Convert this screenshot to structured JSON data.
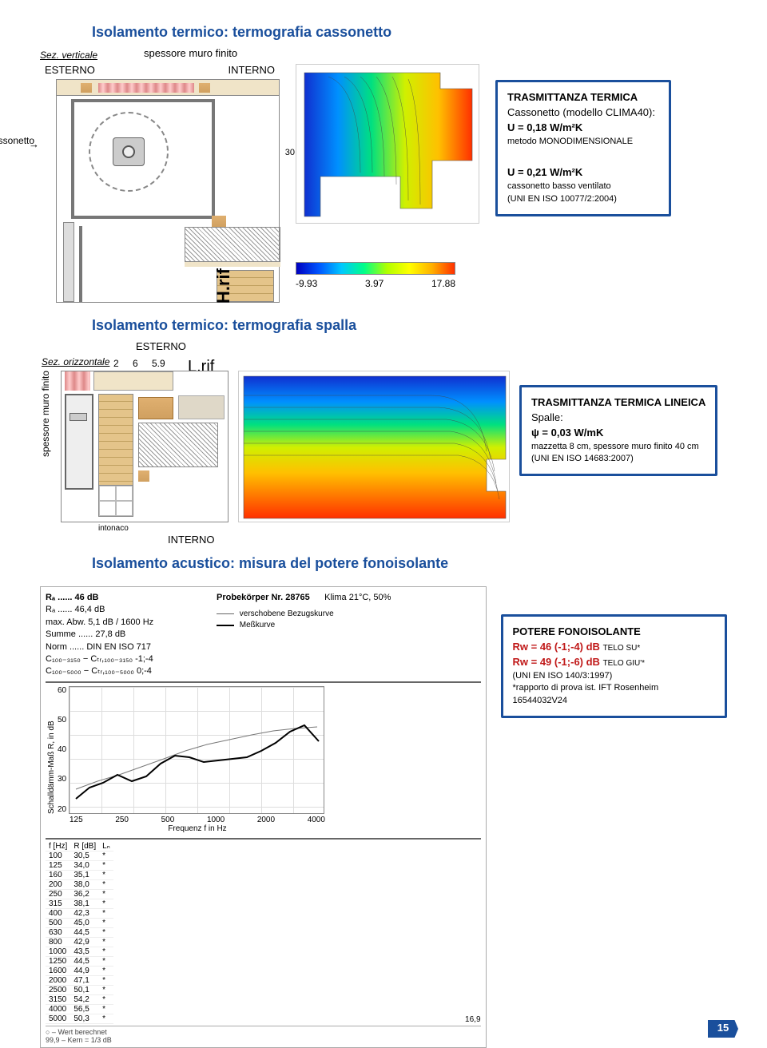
{
  "section1": {
    "title": "Isolamento termico: termografia cassonetto",
    "sez": "Sez. verticale",
    "spessore": "spessore muro finito",
    "esterno": "ESTERNO",
    "interno": "INTERNO",
    "cassonetto": "cassonetto",
    "dim30": "30",
    "hrif": "H.rif",
    "scale": {
      "min": "-9.93",
      "mid": "3.97",
      "max": "17.88"
    },
    "info": {
      "heading": "TRASMITTANZA TERMICA",
      "line1": "Cassonetto (modello CLIMA40):",
      "u1": "U = 0,18 W/m²K",
      "meth": "metodo MONODIMENSIONALE",
      "u2": "U = 0,21 W/m²K",
      "vent": "cassonetto basso ventilato",
      "std": "(UNI EN ISO 10077/2:2004)"
    }
  },
  "section2": {
    "title": "Isolamento termico: termografia spalla",
    "sez": "Sez. orizzontale",
    "esterno": "ESTERNO",
    "lrif": "L.rif",
    "dims": {
      "a": "2",
      "b": "6",
      "c": "5.9"
    },
    "spessore": "spessore muro finito",
    "intonaco": "intonaco",
    "interno": "INTERNO",
    "info": {
      "heading": "TRASMITTANZA TERMICA LINEICA",
      "line1": "Spalle:",
      "psi": "ψ = 0,03 W/mK",
      "note": "mazzetta 8 cm, spessore muro finito 40 cm",
      "std": "(UNI EN ISO 14683:2007)"
    }
  },
  "section3": {
    "title": "Isolamento acustico: misura del potere fonoisolante",
    "header": {
      "rw": "Rₐ ...... 46 dB",
      "rw2": "Rₐ ...... 46,4 dB",
      "maxabw": "max. Abw. 5,1 dB / 1600 Hz",
      "summe": "Summe ...... 27,8 dB",
      "norm": "Norm ...... DIN EN ISO 717",
      "c1": "C₁₀₀₋₃₁₅₀ − Cₜᵣ,₁₀₀₋₃₁₅₀  -1;-4",
      "c2": "C₁₀₀₋₅₀₀₀ − Cₜᵣ,₁₀₀₋₅₀₀₀  0;-4",
      "probe": "Probekörper Nr.   28765",
      "klima": "Klima   21°C, 50%",
      "leg1": "verschobene Bezugskurve",
      "leg2": "Meßkurve"
    },
    "ylabel": "Schalldämm-Maß R, in dB",
    "xlabel": "Frequenz f in Hz",
    "yticks": [
      "60",
      "50",
      "40",
      "30",
      "20"
    ],
    "xticks": [
      "125",
      "250",
      "500",
      "1000",
      "2000",
      "4000"
    ],
    "table_freq": [
      "100",
      "125",
      "160",
      "200",
      "250",
      "315",
      "400",
      "500",
      "630",
      "800",
      "1000",
      "1250",
      "1600",
      "2000",
      "2500",
      "3150",
      "4000",
      "5000"
    ],
    "table_r": [
      "30,5",
      "34,0",
      "35,1",
      "38,0",
      "36,2",
      "38,1",
      "42,3",
      "45,0",
      "44,5",
      "42,9",
      "43,5",
      "44,5",
      "44,9",
      "47,1",
      "50,1",
      "54,2",
      "56,5",
      "50,3"
    ],
    "table_hdr_f": "f [Hz]",
    "table_hdr_r": "R [dB]",
    "table_hdr_l": "Lₙ",
    "footer": "○ – Wert berechnet\n99,9 – Kern = 1/3 dB",
    "footer_val": "16,9",
    "info": {
      "heading": "POTERE FONOISOLANTE",
      "r1a": "Rw = 46 (-1;-4) dB ",
      "r1b": "TELO SU*",
      "r2a": "Rw = 49 (-1;-6) dB ",
      "r2b": "TELO GIU'*",
      "std": "(UNI EN ISO 140/3:1997)",
      "note": "*rapporto di prova ist. IFT Rosenheim 16544032V24"
    }
  },
  "pageNumber": "15"
}
